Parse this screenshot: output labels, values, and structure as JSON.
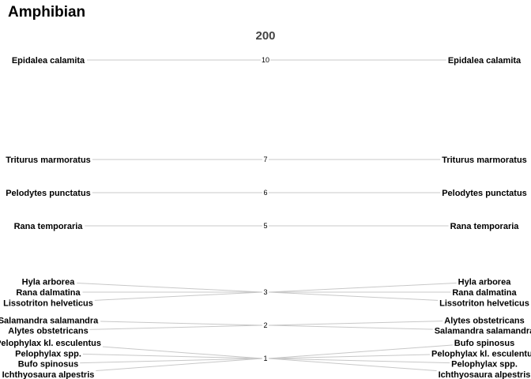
{
  "page_title": "Amphibian",
  "chart_data": {
    "type": "slopegraph",
    "title": "Amphibian",
    "column_header": "200",
    "levels": [
      {
        "value": 10,
        "label": "10"
      },
      {
        "value": 7,
        "label": "7"
      },
      {
        "value": 6,
        "label": "6"
      },
      {
        "value": 5,
        "label": "5"
      },
      {
        "value": 3,
        "label": "3"
      },
      {
        "value": 2,
        "label": "2"
      },
      {
        "value": 1,
        "label": "1"
      }
    ],
    "left": [
      {
        "name": "Epidalea calamita",
        "value": 10
      },
      {
        "name": "Triturus marmoratus",
        "value": 7
      },
      {
        "name": "Pelodytes punctatus",
        "value": 6
      },
      {
        "name": "Rana temporaria",
        "value": 5
      },
      {
        "name": "Hyla arborea",
        "value": 3
      },
      {
        "name": "Rana dalmatina",
        "value": 3
      },
      {
        "name": "Lissotriton helveticus",
        "value": 3
      },
      {
        "name": "Salamandra salamandra",
        "value": 2
      },
      {
        "name": "Alytes obstetricans",
        "value": 2
      },
      {
        "name": "Pelophylax kl. esculentus",
        "value": 1
      },
      {
        "name": "Pelophylax spp.",
        "value": 1
      },
      {
        "name": "Bufo spinosus",
        "value": 1
      },
      {
        "name": "Ichthyosaura alpestris",
        "value": 1
      }
    ],
    "right": [
      {
        "name": "Epidalea calamita",
        "value": 10
      },
      {
        "name": "Triturus marmoratus",
        "value": 7
      },
      {
        "name": "Pelodytes punctatus",
        "value": 6
      },
      {
        "name": "Rana temporaria",
        "value": 5
      },
      {
        "name": "Hyla arborea",
        "value": 3
      },
      {
        "name": "Rana dalmatina",
        "value": 3
      },
      {
        "name": "Lissotriton helveticus",
        "value": 3
      },
      {
        "name": "Alytes obstetricans",
        "value": 2
      },
      {
        "name": "Salamandra salamandra",
        "value": 2
      },
      {
        "name": "Bufo spinosus",
        "value": 1
      },
      {
        "name": "Pelophylax kl. esculentus",
        "value": 1
      },
      {
        "name": "Pelophylax spp.",
        "value": 1
      },
      {
        "name": "Ichthyosaura alpestris",
        "value": 1
      }
    ]
  }
}
